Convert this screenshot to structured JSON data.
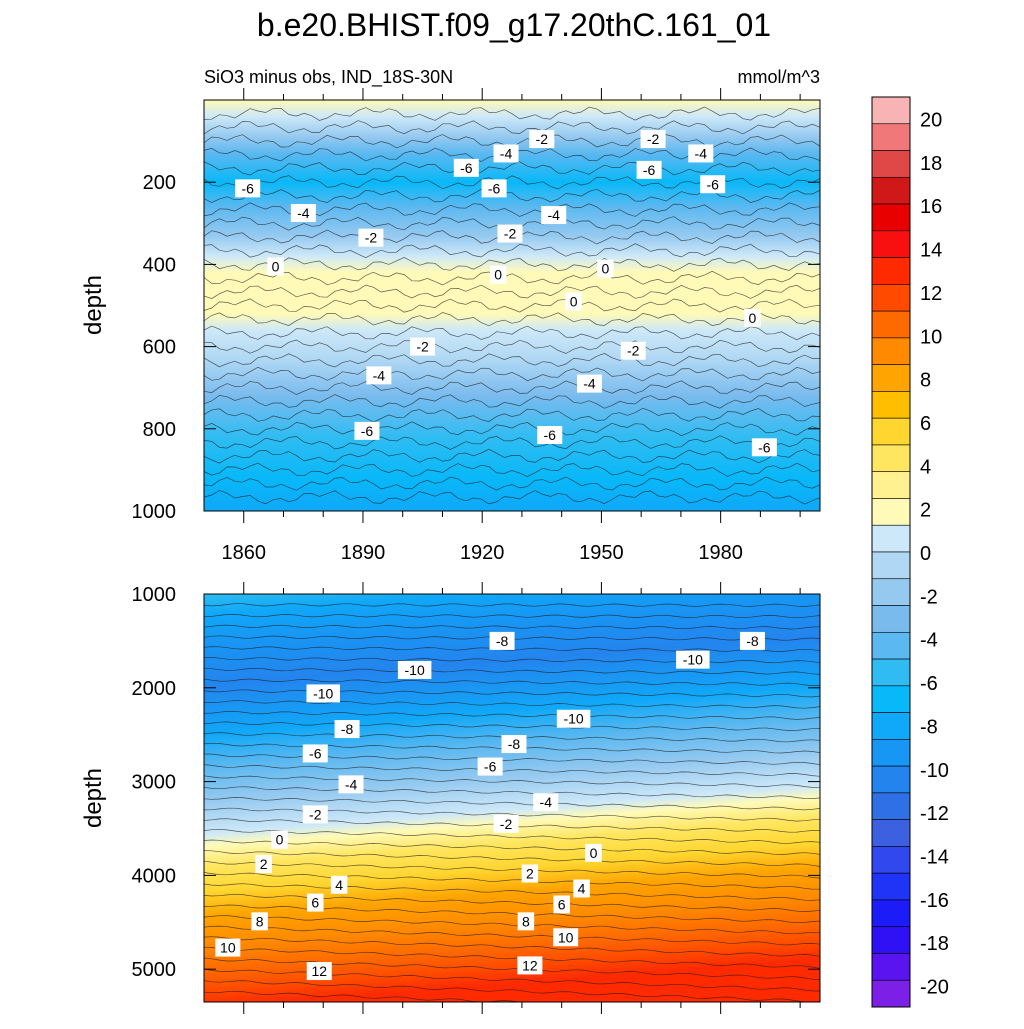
{
  "title": "b.e20.BHIST.f09_g17.20thC.161_01",
  "subtitle": "SiO3 minus obs, IND_18S-30N",
  "units": "mmol/m^3",
  "colorbar": {
    "levels": [
      -20,
      -18,
      -16,
      -14,
      -12,
      -10,
      -8,
      -6,
      -4,
      -2,
      0,
      2,
      4,
      6,
      8,
      10,
      12,
      14,
      16,
      18,
      20
    ],
    "label_values": [
      "20",
      "18",
      "16",
      "14",
      "12",
      "10",
      "8",
      "6",
      "4",
      "2",
      "0",
      "-2",
      "-4",
      "-6",
      "-8",
      "-10",
      "-12",
      "-14",
      "-16",
      "-18",
      "-20"
    ],
    "colors_top_to_bottom": [
      "#f8b4b4",
      "#f07878",
      "#e04848",
      "#d01818",
      "#e80000",
      "#f81010",
      "#ff2a00",
      "#ff4a00",
      "#ff6a00",
      "#ff8a00",
      "#ffa400",
      "#ffbe00",
      "#ffd630",
      "#ffe660",
      "#fff090",
      "#fffab8",
      "#cde8f8",
      "#b0d8f4",
      "#95c9f0",
      "#7abbee",
      "#5cb8f0",
      "#30bcf2",
      "#08b8f8",
      "#10a8f8",
      "#1896f4",
      "#2484ee",
      "#3070e6",
      "#3c60e0",
      "#3048ee",
      "#2034f8",
      "#1c1cf8",
      "#3010f4",
      "#5a14f0",
      "#7c20e8"
    ]
  },
  "chart_data": [
    {
      "type": "heatmap",
      "panel": "upper",
      "ylabel": "depth",
      "yticks": [
        "200",
        "400",
        "600",
        "800",
        "1000"
      ],
      "xticks": [
        "1860",
        "1890",
        "1920",
        "1950",
        "1980"
      ],
      "xlim": [
        1850,
        2005
      ],
      "ylim": [
        1000,
        0
      ],
      "contour_labels": [
        {
          "x": 1935,
          "y": 95,
          "text": "-2"
        },
        {
          "x": 1963,
          "y": 95,
          "text": "-2"
        },
        {
          "x": 1926,
          "y": 130,
          "text": "-4"
        },
        {
          "x": 1975,
          "y": 130,
          "text": "-4"
        },
        {
          "x": 1916,
          "y": 165,
          "text": "-6"
        },
        {
          "x": 1962,
          "y": 170,
          "text": "-6"
        },
        {
          "x": 1861,
          "y": 215,
          "text": "-6"
        },
        {
          "x": 1923,
          "y": 215,
          "text": "-6"
        },
        {
          "x": 1978,
          "y": 205,
          "text": "-6"
        },
        {
          "x": 1875,
          "y": 275,
          "text": "-4"
        },
        {
          "x": 1938,
          "y": 280,
          "text": "-4"
        },
        {
          "x": 1892,
          "y": 335,
          "text": "-2"
        },
        {
          "x": 1927,
          "y": 325,
          "text": "-2"
        },
        {
          "x": 1868,
          "y": 405,
          "text": "0"
        },
        {
          "x": 1924,
          "y": 425,
          "text": "0"
        },
        {
          "x": 1951,
          "y": 410,
          "text": "0"
        },
        {
          "x": 1943,
          "y": 490,
          "text": "0"
        },
        {
          "x": 1988,
          "y": 530,
          "text": "0"
        },
        {
          "x": 1905,
          "y": 600,
          "text": "-2"
        },
        {
          "x": 1958,
          "y": 610,
          "text": "-2"
        },
        {
          "x": 1894,
          "y": 670,
          "text": "-4"
        },
        {
          "x": 1947,
          "y": 690,
          "text": "-4"
        },
        {
          "x": 1891,
          "y": 805,
          "text": "-6"
        },
        {
          "x": 1937,
          "y": 815,
          "text": "-6"
        },
        {
          "x": 1991,
          "y": 845,
          "text": "-6"
        }
      ]
    },
    {
      "type": "heatmap",
      "panel": "lower",
      "ylabel": "depth",
      "yticks": [
        "1000",
        "2000",
        "3000",
        "4000",
        "5000"
      ],
      "xlim": [
        1850,
        2005
      ],
      "ylim": [
        5350,
        1000
      ],
      "contour_labels": [
        {
          "x": 1925,
          "y": 1500,
          "text": "-8"
        },
        {
          "x": 1988,
          "y": 1500,
          "text": "-8"
        },
        {
          "x": 1903,
          "y": 1810,
          "text": "-10"
        },
        {
          "x": 1973,
          "y": 1700,
          "text": "-10"
        },
        {
          "x": 1880,
          "y": 2060,
          "text": "-10"
        },
        {
          "x": 1943,
          "y": 2330,
          "text": "-10"
        },
        {
          "x": 1886,
          "y": 2440,
          "text": "-8"
        },
        {
          "x": 1928,
          "y": 2600,
          "text": "-8"
        },
        {
          "x": 1878,
          "y": 2700,
          "text": "-6"
        },
        {
          "x": 1922,
          "y": 2840,
          "text": "-6"
        },
        {
          "x": 1887,
          "y": 3030,
          "text": "-4"
        },
        {
          "x": 1936,
          "y": 3220,
          "text": "-4"
        },
        {
          "x": 1878,
          "y": 3350,
          "text": "-2"
        },
        {
          "x": 1926,
          "y": 3450,
          "text": "-2"
        },
        {
          "x": 1869,
          "y": 3620,
          "text": "0"
        },
        {
          "x": 1948,
          "y": 3760,
          "text": "0"
        },
        {
          "x": 1865,
          "y": 3880,
          "text": "2"
        },
        {
          "x": 1932,
          "y": 3980,
          "text": "2"
        },
        {
          "x": 1884,
          "y": 4100,
          "text": "4"
        },
        {
          "x": 1945,
          "y": 4140,
          "text": "4"
        },
        {
          "x": 1878,
          "y": 4290,
          "text": "6"
        },
        {
          "x": 1940,
          "y": 4310,
          "text": "6"
        },
        {
          "x": 1864,
          "y": 4490,
          "text": "8"
        },
        {
          "x": 1931,
          "y": 4490,
          "text": "8"
        },
        {
          "x": 1856,
          "y": 4770,
          "text": "10"
        },
        {
          "x": 1941,
          "y": 4660,
          "text": "10"
        },
        {
          "x": 1879,
          "y": 5020,
          "text": "12"
        },
        {
          "x": 1932,
          "y": 4960,
          "text": "12"
        }
      ]
    }
  ]
}
